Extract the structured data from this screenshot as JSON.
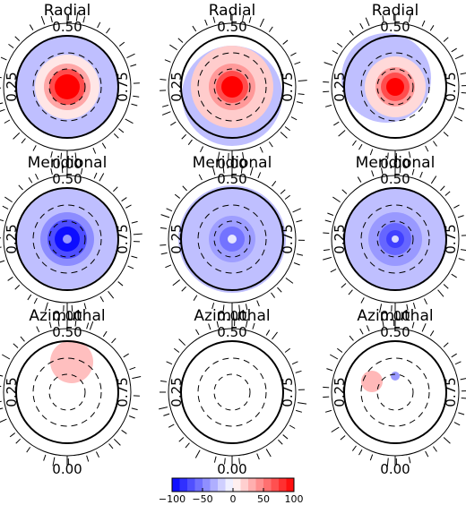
{
  "panels": [
    {
      "title": "Radial",
      "labels": {
        "top": "0.50",
        "bottom": "0.00",
        "left": "0.25",
        "right": "0.75"
      },
      "blobs": [
        {
          "dx": 0,
          "dy": 0,
          "r": 58,
          "value": -25
        },
        {
          "dx": 0,
          "dy": 0,
          "r": 36,
          "value": 10
        },
        {
          "dx": 0,
          "dy": 0,
          "r": 26,
          "value": 35
        },
        {
          "dx": 0,
          "dy": 0,
          "r": 20,
          "value": 70
        },
        {
          "dx": 0,
          "dy": 0,
          "r": 14,
          "value": 100
        }
      ]
    },
    {
      "title": "Radial",
      "labels": {
        "top": "0.50",
        "bottom": "0.00",
        "left": "0.25",
        "right": "0.75"
      },
      "blobs": [
        {
          "dx": 0,
          "dy": 10,
          "r": 56,
          "value": -25
        },
        {
          "dx": 0,
          "dy": 0,
          "r": 46,
          "value": 20
        },
        {
          "dx": 0,
          "dy": 0,
          "r": 26,
          "value": 40
        },
        {
          "dx": 0,
          "dy": 0,
          "r": 18,
          "value": 70
        },
        {
          "dx": 0,
          "dy": 0,
          "r": 12,
          "value": 100
        }
      ]
    },
    {
      "title": "Radial",
      "labels": {
        "top": "0.50",
        "bottom": "0.00",
        "left": "0.25",
        "right": "0.75"
      },
      "blobs": [
        {
          "dx": -10,
          "dy": -10,
          "r": 50,
          "value": -25
        },
        {
          "dx": 0,
          "dy": 0,
          "r": 34,
          "value": 15
        },
        {
          "dx": 0,
          "dy": 0,
          "r": 22,
          "value": 40
        },
        {
          "dx": 0,
          "dy": 0,
          "r": 16,
          "value": 70
        },
        {
          "dx": 0,
          "dy": 0,
          "r": 10,
          "value": 100
        }
      ]
    },
    {
      "title": "Meridional",
      "labels": {
        "top": "0.50",
        "bottom": "0.00",
        "left": "0.25",
        "right": "0.75"
      },
      "blobs": [
        {
          "dx": 0,
          "dy": 0,
          "r": 56,
          "value": -25
        },
        {
          "dx": 0,
          "dy": 0,
          "r": 30,
          "value": -45
        },
        {
          "dx": 0,
          "dy": 0,
          "r": 22,
          "value": -70
        },
        {
          "dx": 0,
          "dy": 0,
          "r": 14,
          "value": -95
        },
        {
          "dx": 0,
          "dy": 0,
          "r": 5,
          "value": -40
        }
      ]
    },
    {
      "title": "Meridional",
      "labels": {
        "top": "0.50",
        "bottom": "0.00",
        "left": "0.25",
        "right": "0.75"
      },
      "blobs": [
        {
          "dx": 0,
          "dy": 0,
          "r": 60,
          "value": -25
        },
        {
          "dx": 0,
          "dy": 0,
          "r": 26,
          "value": -38
        },
        {
          "dx": 0,
          "dy": 0,
          "r": 14,
          "value": -55
        },
        {
          "dx": 0,
          "dy": 0,
          "r": 5,
          "value": -10
        }
      ]
    },
    {
      "title": "Meridional",
      "labels": {
        "top": "0.50",
        "bottom": "0.00",
        "left": "0.25",
        "right": "0.75"
      },
      "blobs": [
        {
          "dx": 0,
          "dy": 0,
          "r": 58,
          "value": -25
        },
        {
          "dx": 0,
          "dy": 0,
          "r": 30,
          "value": -40
        },
        {
          "dx": 0,
          "dy": 0,
          "r": 18,
          "value": -60
        },
        {
          "dx": 0,
          "dy": 0,
          "r": 10,
          "value": -75
        },
        {
          "dx": 0,
          "dy": 0,
          "r": 4,
          "value": -15
        }
      ]
    },
    {
      "title": "Azimuthal",
      "labels": {
        "top": "0.50",
        "bottom": "0.00",
        "left": "0.25",
        "right": "0.75"
      },
      "blobs": [
        {
          "dx": 5,
          "dy": -34,
          "r": 24,
          "value": 25
        }
      ]
    },
    {
      "title": "Azimuthal",
      "labels": {
        "top": "0.50",
        "bottom": "0.00",
        "left": "0.25",
        "right": "0.75"
      },
      "blobs": []
    },
    {
      "title": "Azimuthal",
      "labels": {
        "top": "0.50",
        "bottom": "0.00",
        "left": "0.25",
        "right": "0.75"
      },
      "blobs": [
        {
          "dx": -26,
          "dy": -12,
          "r": 12,
          "value": 28
        },
        {
          "dx": 0,
          "dy": -18,
          "r": 5,
          "value": -40
        }
      ]
    }
  ],
  "colorbar": {
    "ticks": [
      -100,
      -50,
      0,
      50,
      100
    ],
    "tick_labels": [
      "−100",
      "−50",
      "0",
      "50",
      "100"
    ],
    "range": [
      -100,
      100
    ],
    "steps": 16,
    "colors": {
      "negative": "#0000ff",
      "zero": "#ffffff",
      "positive": "#ff0000"
    }
  }
}
